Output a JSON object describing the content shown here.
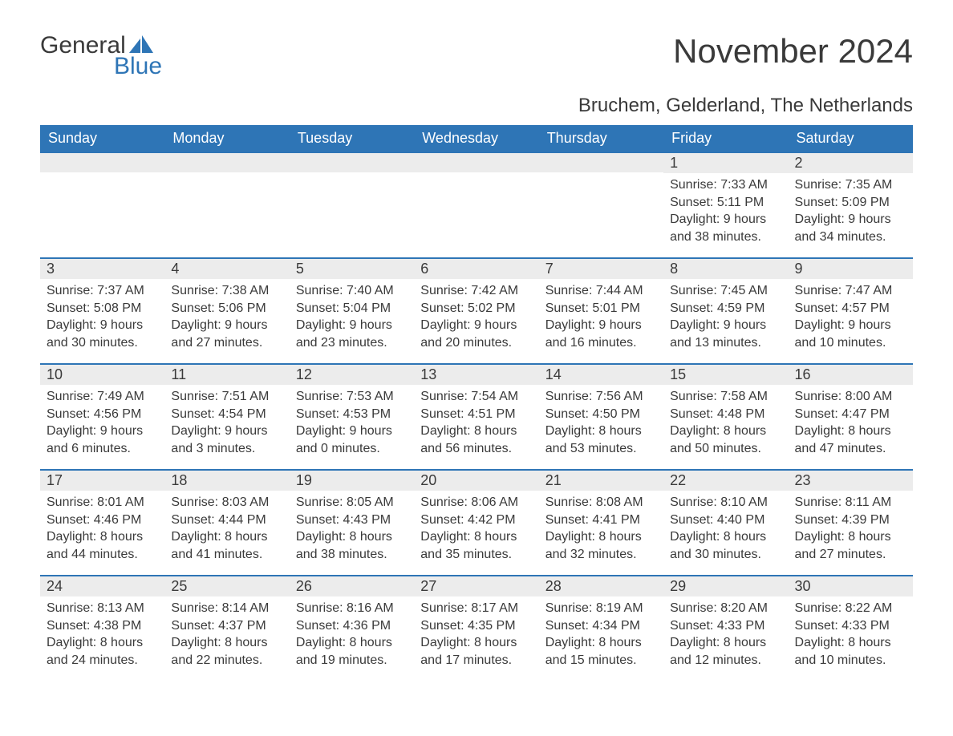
{
  "logo": {
    "word1": "General",
    "word2": "Blue"
  },
  "title": "November 2024",
  "location": "Bruchem, Gelderland, The Netherlands",
  "colors": {
    "header_blue": "#2e75b6",
    "daynum_bg": "#ececec",
    "text": "#3a3a3a",
    "white": "#ffffff"
  },
  "weekdays": [
    "Sunday",
    "Monday",
    "Tuesday",
    "Wednesday",
    "Thursday",
    "Friday",
    "Saturday"
  ],
  "layout": {
    "first_weekday_index": 5,
    "days_in_month": 30
  },
  "days": {
    "1": {
      "sunrise": "7:33 AM",
      "sunset": "5:11 PM",
      "daylight": "9 hours and 38 minutes."
    },
    "2": {
      "sunrise": "7:35 AM",
      "sunset": "5:09 PM",
      "daylight": "9 hours and 34 minutes."
    },
    "3": {
      "sunrise": "7:37 AM",
      "sunset": "5:08 PM",
      "daylight": "9 hours and 30 minutes."
    },
    "4": {
      "sunrise": "7:38 AM",
      "sunset": "5:06 PM",
      "daylight": "9 hours and 27 minutes."
    },
    "5": {
      "sunrise": "7:40 AM",
      "sunset": "5:04 PM",
      "daylight": "9 hours and 23 minutes."
    },
    "6": {
      "sunrise": "7:42 AM",
      "sunset": "5:02 PM",
      "daylight": "9 hours and 20 minutes."
    },
    "7": {
      "sunrise": "7:44 AM",
      "sunset": "5:01 PM",
      "daylight": "9 hours and 16 minutes."
    },
    "8": {
      "sunrise": "7:45 AM",
      "sunset": "4:59 PM",
      "daylight": "9 hours and 13 minutes."
    },
    "9": {
      "sunrise": "7:47 AM",
      "sunset": "4:57 PM",
      "daylight": "9 hours and 10 minutes."
    },
    "10": {
      "sunrise": "7:49 AM",
      "sunset": "4:56 PM",
      "daylight": "9 hours and 6 minutes."
    },
    "11": {
      "sunrise": "7:51 AM",
      "sunset": "4:54 PM",
      "daylight": "9 hours and 3 minutes."
    },
    "12": {
      "sunrise": "7:53 AM",
      "sunset": "4:53 PM",
      "daylight": "9 hours and 0 minutes."
    },
    "13": {
      "sunrise": "7:54 AM",
      "sunset": "4:51 PM",
      "daylight": "8 hours and 56 minutes."
    },
    "14": {
      "sunrise": "7:56 AM",
      "sunset": "4:50 PM",
      "daylight": "8 hours and 53 minutes."
    },
    "15": {
      "sunrise": "7:58 AM",
      "sunset": "4:48 PM",
      "daylight": "8 hours and 50 minutes."
    },
    "16": {
      "sunrise": "8:00 AM",
      "sunset": "4:47 PM",
      "daylight": "8 hours and 47 minutes."
    },
    "17": {
      "sunrise": "8:01 AM",
      "sunset": "4:46 PM",
      "daylight": "8 hours and 44 minutes."
    },
    "18": {
      "sunrise": "8:03 AM",
      "sunset": "4:44 PM",
      "daylight": "8 hours and 41 minutes."
    },
    "19": {
      "sunrise": "8:05 AM",
      "sunset": "4:43 PM",
      "daylight": "8 hours and 38 minutes."
    },
    "20": {
      "sunrise": "8:06 AM",
      "sunset": "4:42 PM",
      "daylight": "8 hours and 35 minutes."
    },
    "21": {
      "sunrise": "8:08 AM",
      "sunset": "4:41 PM",
      "daylight": "8 hours and 32 minutes."
    },
    "22": {
      "sunrise": "8:10 AM",
      "sunset": "4:40 PM",
      "daylight": "8 hours and 30 minutes."
    },
    "23": {
      "sunrise": "8:11 AM",
      "sunset": "4:39 PM",
      "daylight": "8 hours and 27 minutes."
    },
    "24": {
      "sunrise": "8:13 AM",
      "sunset": "4:38 PM",
      "daylight": "8 hours and 24 minutes."
    },
    "25": {
      "sunrise": "8:14 AM",
      "sunset": "4:37 PM",
      "daylight": "8 hours and 22 minutes."
    },
    "26": {
      "sunrise": "8:16 AM",
      "sunset": "4:36 PM",
      "daylight": "8 hours and 19 minutes."
    },
    "27": {
      "sunrise": "8:17 AM",
      "sunset": "4:35 PM",
      "daylight": "8 hours and 17 minutes."
    },
    "28": {
      "sunrise": "8:19 AM",
      "sunset": "4:34 PM",
      "daylight": "8 hours and 15 minutes."
    },
    "29": {
      "sunrise": "8:20 AM",
      "sunset": "4:33 PM",
      "daylight": "8 hours and 12 minutes."
    },
    "30": {
      "sunrise": "8:22 AM",
      "sunset": "4:33 PM",
      "daylight": "8 hours and 10 minutes."
    }
  },
  "labels": {
    "sunrise": "Sunrise:",
    "sunset": "Sunset:",
    "daylight": "Daylight:"
  }
}
